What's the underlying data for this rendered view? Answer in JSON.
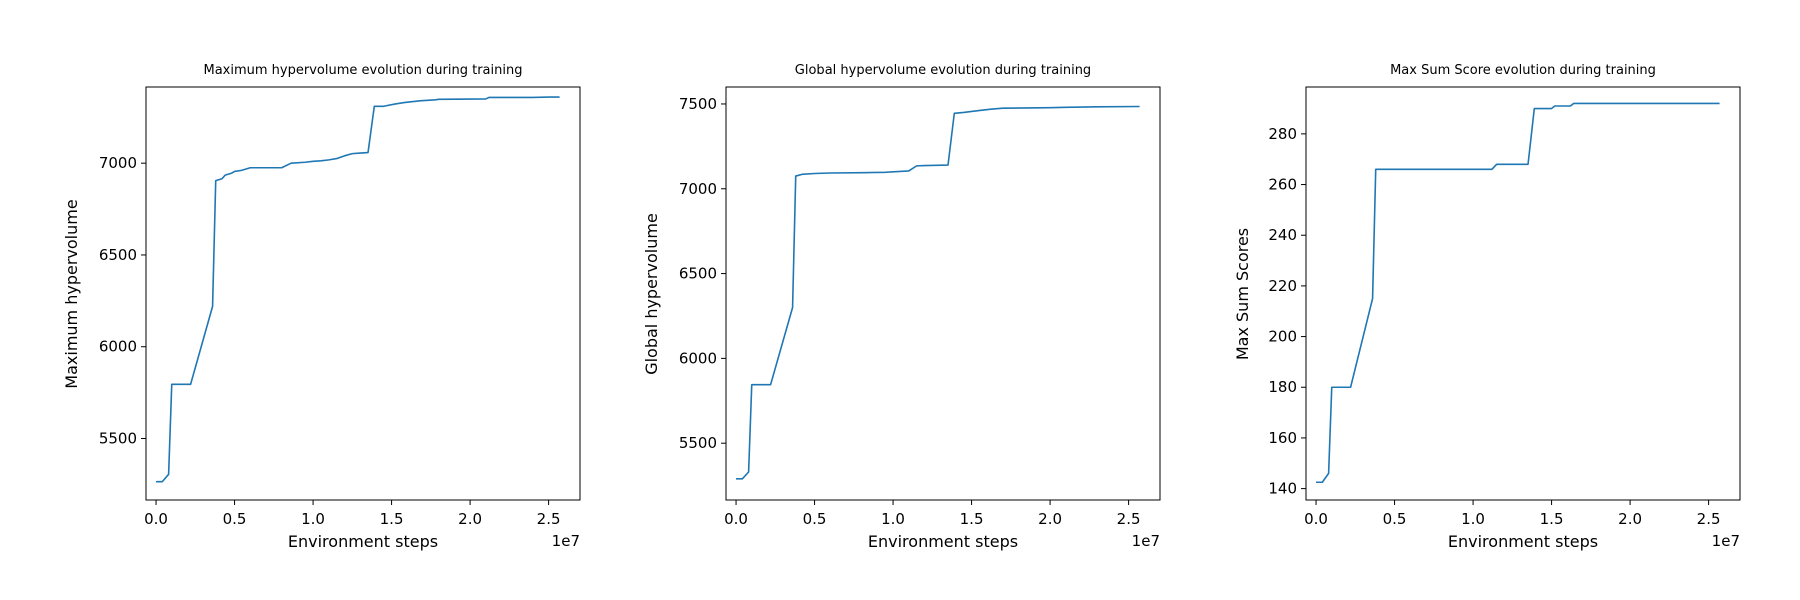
{
  "chart_data": [
    {
      "type": "line",
      "title": "Maximum hypervolume evolution during training",
      "xlabel": "Environment steps",
      "ylabel": "Maximum hypervolume",
      "x_multiplier": "1e7",
      "xlim": [
        -0.064,
        2.7
      ],
      "ylim": [
        5165,
        7415
      ],
      "xticks": [
        0.0,
        0.5,
        1.0,
        1.5,
        2.0,
        2.5
      ],
      "xtick_labels": [
        "0.0",
        "0.5",
        "1.0",
        "1.5",
        "2.0",
        "2.5"
      ],
      "yticks": [
        5500,
        6000,
        6500,
        7000
      ],
      "ytick_labels": [
        "5500",
        "6000",
        "6500",
        "7000"
      ],
      "grid": false,
      "color": "#1f77b4",
      "series": [
        {
          "x": [
            0.0,
            0.04,
            0.08,
            0.1,
            0.15,
            0.17,
            0.22,
            0.36,
            0.38,
            0.42,
            0.44,
            0.48,
            0.5,
            0.54,
            0.56,
            0.6,
            0.65,
            0.68,
            0.75,
            0.8,
            0.86,
            0.95,
            1.0,
            1.05,
            1.1,
            1.15,
            1.2,
            1.25,
            1.3,
            1.35,
            1.39,
            1.45,
            1.52,
            1.58,
            1.63,
            1.68,
            1.78,
            1.8,
            2.1,
            2.12,
            2.4,
            2.5,
            2.57
          ],
          "y": [
            5265,
            5265,
            5305,
            5795,
            5795,
            5795,
            5795,
            6220,
            6905,
            6915,
            6935,
            6945,
            6955,
            6960,
            6965,
            6975,
            6975,
            6975,
            6975,
            6975,
            7000,
            7005,
            7010,
            7013,
            7018,
            7025,
            7040,
            7052,
            7055,
            7058,
            7310,
            7310,
            7322,
            7330,
            7335,
            7340,
            7345,
            7348,
            7350,
            7358,
            7358,
            7360,
            7360
          ]
        }
      ]
    },
    {
      "type": "line",
      "title": "Global hypervolume evolution during training",
      "xlabel": "Environment steps",
      "ylabel": "Global hypervolume",
      "x_multiplier": "1e7",
      "xlim": [
        -0.064,
        2.7
      ],
      "ylim": [
        5165,
        7600
      ],
      "xticks": [
        0.0,
        0.5,
        1.0,
        1.5,
        2.0,
        2.5
      ],
      "xtick_labels": [
        "0.0",
        "0.5",
        "1.0",
        "1.5",
        "2.0",
        "2.5"
      ],
      "yticks": [
        5500,
        6000,
        6500,
        7000,
        7500
      ],
      "ytick_labels": [
        "5500",
        "6000",
        "6500",
        "7000",
        "7500"
      ],
      "grid": false,
      "color": "#1f77b4",
      "series": [
        {
          "x": [
            0.0,
            0.04,
            0.08,
            0.1,
            0.15,
            0.17,
            0.22,
            0.36,
            0.38,
            0.42,
            0.5,
            0.6,
            0.8,
            0.95,
            1.0,
            1.1,
            1.15,
            1.2,
            1.35,
            1.39,
            1.45,
            1.52,
            1.58,
            1.63,
            1.7,
            2.0,
            2.1,
            2.3,
            2.57
          ],
          "y": [
            5290,
            5290,
            5330,
            5845,
            5845,
            5845,
            5845,
            6300,
            7075,
            7085,
            7090,
            7093,
            7095,
            7097,
            7100,
            7105,
            7135,
            7137,
            7140,
            7445,
            7450,
            7458,
            7465,
            7470,
            7475,
            7478,
            7480,
            7483,
            7485
          ]
        }
      ]
    },
    {
      "type": "line",
      "title": "Max Sum Score evolution during training",
      "xlabel": "Environment steps",
      "ylabel": "Max Sum Scores",
      "x_multiplier": "1e7",
      "xlim": [
        -0.064,
        2.7
      ],
      "ylim": [
        135.5,
        298.5
      ],
      "xticks": [
        0.0,
        0.5,
        1.0,
        1.5,
        2.0,
        2.5
      ],
      "xtick_labels": [
        "0.0",
        "0.5",
        "1.0",
        "1.5",
        "2.0",
        "2.5"
      ],
      "yticks": [
        140,
        160,
        180,
        200,
        220,
        240,
        260,
        280
      ],
      "ytick_labels": [
        "140",
        "160",
        "180",
        "200",
        "220",
        "240",
        "260",
        "280"
      ],
      "grid": false,
      "color": "#1f77b4",
      "series": [
        {
          "x": [
            0.0,
            0.04,
            0.08,
            0.1,
            0.15,
            0.17,
            0.22,
            0.36,
            0.38,
            0.6,
            1.0,
            1.12,
            1.15,
            1.35,
            1.39,
            1.5,
            1.52,
            1.62,
            1.64,
            2.0,
            2.57
          ],
          "y": [
            142.5,
            142.5,
            146,
            180,
            180,
            180,
            180,
            215,
            266,
            266,
            266,
            266,
            268,
            268,
            290,
            290,
            291,
            291,
            292,
            292,
            292
          ]
        }
      ]
    }
  ]
}
